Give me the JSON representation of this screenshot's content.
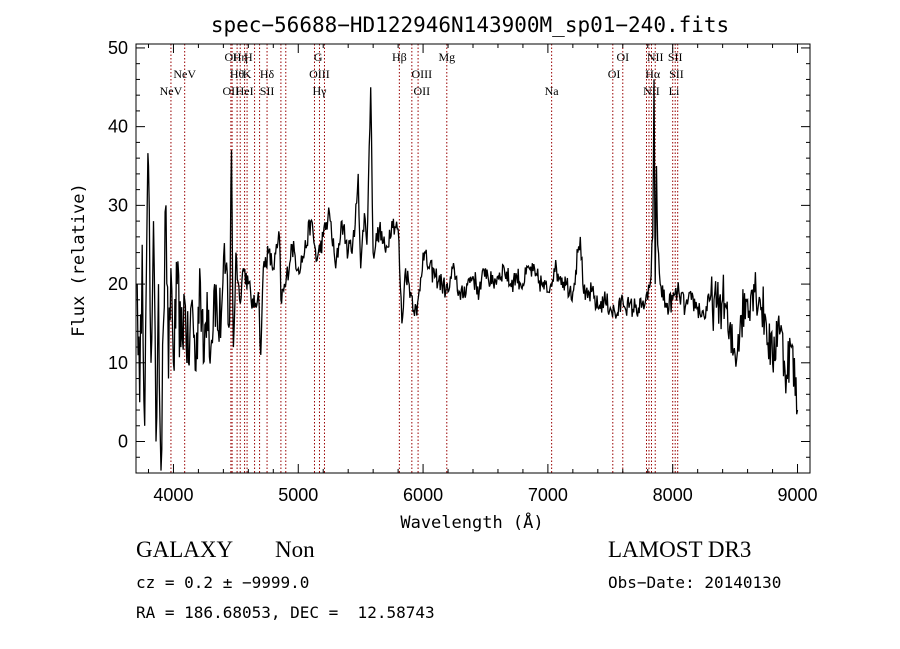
{
  "chart_data": {
    "type": "line",
    "title": "spec−56688−HD122946N143900M_sp01−240.fits",
    "xlabel": "Wavelength (Å)",
    "ylabel": "Flux (relative)",
    "xlim": [
      3700,
      9100
    ],
    "ylim": [
      -4,
      50.5
    ],
    "x_ticks": [
      4000,
      5000,
      6000,
      7000,
      8000,
      9000
    ],
    "y_ticks": [
      0,
      10,
      20,
      30,
      40,
      50
    ],
    "x_tick_labels": [
      "4000",
      "5000",
      "6000",
      "7000",
      "8000",
      "9000"
    ],
    "y_tick_labels": [
      "0",
      "10",
      "20",
      "30",
      "40",
      "50"
    ],
    "series": [
      {
        "name": "flux",
        "x": [
          3710,
          3730,
          3750,
          3770,
          3790,
          3800,
          3820,
          3840,
          3860,
          3880,
          3900,
          3920,
          3940,
          3960,
          3980,
          4000,
          4030,
          4060,
          4090,
          4120,
          4150,
          4180,
          4210,
          4240,
          4270,
          4300,
          4330,
          4360,
          4390,
          4420,
          4450,
          4465,
          4480,
          4500,
          4530,
          4560,
          4600,
          4640,
          4680,
          4700,
          4720,
          4760,
          4800,
          4850,
          4861,
          4900,
          4950,
          5000,
          5050,
          5100,
          5150,
          5200,
          5250,
          5300,
          5350,
          5400,
          5450,
          5480,
          5500,
          5530,
          5550,
          5580,
          5600,
          5650,
          5700,
          5750,
          5800,
          5830,
          5860,
          5900,
          5950,
          6000,
          6050,
          6100,
          6150,
          6200,
          6250,
          6300,
          6350,
          6400,
          6450,
          6500,
          6550,
          6600,
          6650,
          6700,
          6750,
          6800,
          6850,
          6900,
          6950,
          7000,
          7050,
          7100,
          7150,
          7200,
          7240,
          7260,
          7280,
          7300,
          7350,
          7400,
          7450,
          7500,
          7550,
          7600,
          7650,
          7700,
          7750,
          7800,
          7820,
          7840,
          7850,
          7860,
          7870,
          7880,
          7900,
          7950,
          8000,
          8050,
          8100,
          8150,
          8200,
          8250,
          8300,
          8350,
          8400,
          8430,
          8450,
          8500,
          8550,
          8600,
          8650,
          8700,
          8750,
          8800,
          8850,
          8900,
          8950,
          9000
        ],
        "values": [
          20,
          5,
          25,
          2,
          30,
          35,
          10,
          28,
          0,
          20,
          -4,
          15,
          30,
          8,
          22,
          10,
          20,
          12,
          18,
          10,
          18,
          9,
          22,
          10,
          19,
          12,
          20,
          14,
          18,
          22,
          15,
          37,
          12,
          24,
          18,
          22,
          20,
          17,
          19,
          11,
          22,
          24,
          22,
          26,
          18,
          20,
          25,
          22,
          24,
          28,
          23,
          26,
          29,
          22,
          28,
          24,
          26,
          34,
          22,
          29,
          25,
          45,
          24,
          27,
          24,
          28,
          27,
          15,
          22,
          19,
          16,
          24,
          22,
          21,
          20,
          19,
          22,
          18,
          20,
          21,
          19,
          22,
          20,
          21,
          22,
          20,
          21,
          20,
          22,
          21,
          20,
          19,
          22,
          21,
          20,
          19,
          24,
          26,
          20,
          18,
          19,
          17,
          18,
          17,
          16,
          18,
          17,
          17,
          17,
          18,
          20,
          26,
          46,
          20,
          35,
          25,
          20,
          17,
          18,
          19,
          17,
          18,
          17,
          16,
          18,
          17,
          18,
          17,
          13,
          11,
          16,
          18,
          20,
          18,
          15,
          10,
          16,
          9,
          12,
          4
        ]
      }
    ],
    "annotations": {
      "row1": [
        {
          "label": "OI",
          "x": 4460
        },
        {
          "label": "Hη",
          "x": 4535
        },
        {
          "label": "H",
          "x": 4600
        },
        {
          "label": "G",
          "x": 5160
        },
        {
          "label": "Hβ",
          "x": 5810
        },
        {
          "label": "Mg",
          "x": 6190
        },
        {
          "label": "OI",
          "x": 7600
        },
        {
          "label": "NII",
          "x": 7860
        },
        {
          "label": "SII",
          "x": 8020
        }
      ],
      "row2": [
        {
          "label": "NeV",
          "x": 4090
        },
        {
          "label": "Hθ",
          "x": 4510
        },
        {
          "label": "K",
          "x": 4590
        },
        {
          "label": "Hδ",
          "x": 4750
        },
        {
          "label": "OIII",
          "x": 5170
        },
        {
          "label": "OIII",
          "x": 5990
        },
        {
          "label": "OI",
          "x": 7530
        },
        {
          "label": "Hα",
          "x": 7840
        },
        {
          "label": "SII",
          "x": 8030
        }
      ],
      "row3": [
        {
          "label": "NeV",
          "x": 3980
        },
        {
          "label": "OII",
          "x": 4460
        },
        {
          "label": "HeI",
          "x": 4570
        },
        {
          "label": "SII",
          "x": 4750
        },
        {
          "label": "Hγ",
          "x": 5170
        },
        {
          "label": "OII",
          "x": 5990
        },
        {
          "label": "Na",
          "x": 7030
        },
        {
          "label": "NII",
          "x": 7830
        },
        {
          "label": "Li",
          "x": 8010
        }
      ]
    },
    "line_markers": [
      3980,
      4090,
      4460,
      4470,
      4510,
      4535,
      4570,
      4590,
      4650,
      4690,
      4750,
      4861,
      4900,
      5130,
      5170,
      5210,
      5810,
      5910,
      5960,
      6190,
      7030,
      7520,
      7600,
      7790,
      7810,
      7830,
      7860,
      8000,
      8020,
      8040
    ]
  },
  "info": {
    "class_label": "GALAXY",
    "subclass_label": "Non",
    "cz_text": "cz = 0.2 ± −9999.0",
    "coords_text": "RA = 186.68053, DEC =  12.58743",
    "survey_label": "LAMOST DR3",
    "obs_date_text": "Obs−Date: 20140130"
  },
  "colors": {
    "marker": "#990000",
    "line": "#000000",
    "background": "#ffffff"
  }
}
